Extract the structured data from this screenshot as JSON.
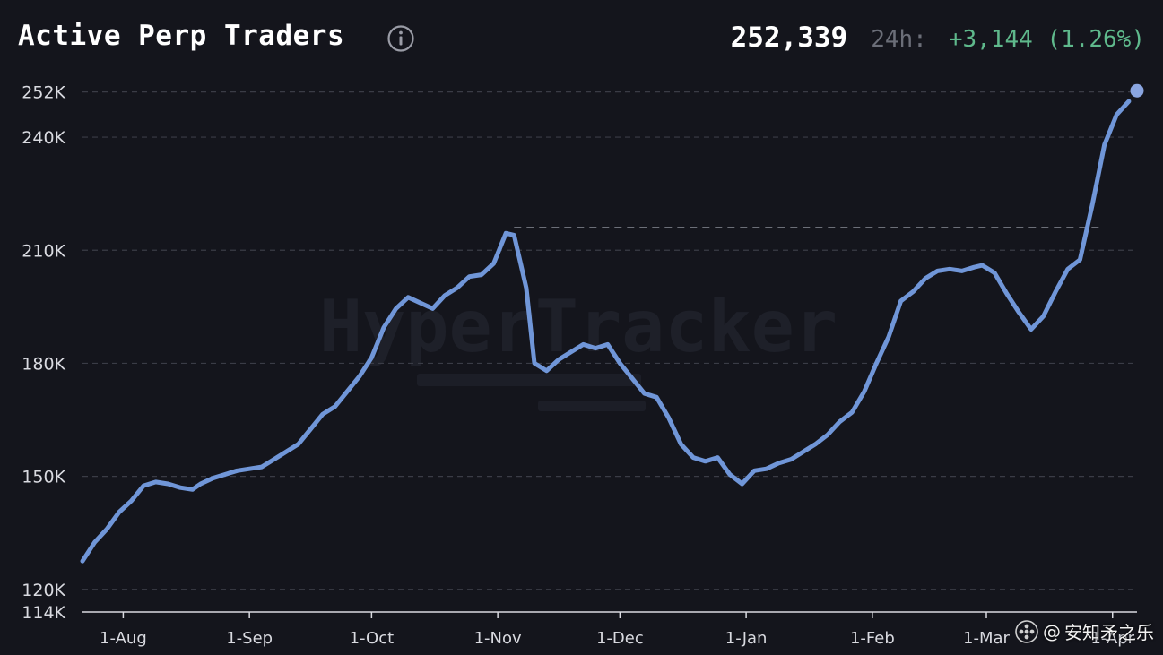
{
  "header": {
    "title": "Active Perp Traders",
    "current_value": "252,339",
    "period_label": "24h:",
    "change_text": "+3,144 (1.26%)"
  },
  "watermark": "HyperTracker",
  "credit": {
    "at": "@",
    "name": "安知矛之乐"
  },
  "colors": {
    "background": "#14151c",
    "line": "#7096d8",
    "grid": "#3a3c46",
    "positive": "#5fb98c"
  },
  "chart_data": {
    "type": "line",
    "title": "Active Perp Traders",
    "xlabel": "",
    "ylabel": "",
    "grid": true,
    "ylim": [
      114000,
      255000
    ],
    "xlim": [
      "2024-07-22",
      "2025-04-07"
    ],
    "y_ticks": [
      {
        "value": 114000,
        "label": "114K"
      },
      {
        "value": 120000,
        "label": "120K"
      },
      {
        "value": 150000,
        "label": "150K"
      },
      {
        "value": 180000,
        "label": "180K"
      },
      {
        "value": 210000,
        "label": "210K"
      },
      {
        "value": 240000,
        "label": "240K"
      },
      {
        "value": 252000,
        "label": "252K"
      }
    ],
    "x_ticks": [
      {
        "date": "2024-08-01",
        "label": "1-Aug"
      },
      {
        "date": "2024-09-01",
        "label": "1-Sep"
      },
      {
        "date": "2024-10-01",
        "label": "1-Oct"
      },
      {
        "date": "2024-11-01",
        "label": "1-Nov"
      },
      {
        "date": "2024-12-01",
        "label": "1-Dec"
      },
      {
        "date": "2025-01-01",
        "label": "1-Jan"
      },
      {
        "date": "2025-02-01",
        "label": "1-Feb"
      },
      {
        "date": "2025-03-01",
        "label": "1-Mar"
      },
      {
        "date": "2025-04-01",
        "label": "1-Apr"
      }
    ],
    "reference_lines": [
      {
        "value": 216000,
        "from": "2024-11-05",
        "to": "2025-03-29"
      }
    ],
    "series": [
      {
        "x": [
          "2024-07-22",
          "2024-07-25",
          "2024-07-28",
          "2024-07-31",
          "2024-08-03",
          "2024-08-06",
          "2024-08-09",
          "2024-08-12",
          "2024-08-15",
          "2024-08-18",
          "2024-08-20",
          "2024-08-23",
          "2024-08-26",
          "2024-08-29",
          "2024-09-01",
          "2024-09-04",
          "2024-09-07",
          "2024-09-10",
          "2024-09-13",
          "2024-09-16",
          "2024-09-19",
          "2024-09-22",
          "2024-09-25",
          "2024-09-28",
          "2024-10-01",
          "2024-10-04",
          "2024-10-07",
          "2024-10-10",
          "2024-10-13",
          "2024-10-16",
          "2024-10-19",
          "2024-10-22",
          "2024-10-25",
          "2024-10-28",
          "2024-10-31",
          "2024-11-03",
          "2024-11-05",
          "2024-11-08",
          "2024-11-10",
          "2024-11-13",
          "2024-11-16",
          "2024-11-19",
          "2024-11-22",
          "2024-11-25",
          "2024-11-28",
          "2024-12-01",
          "2024-12-04",
          "2024-12-07",
          "2024-12-10",
          "2024-12-13",
          "2024-12-16",
          "2024-12-19",
          "2024-12-22",
          "2024-12-25",
          "2024-12-28",
          "2024-12-31",
          "2025-01-03",
          "2025-01-06",
          "2025-01-09",
          "2025-01-12",
          "2025-01-15",
          "2025-01-18",
          "2025-01-21",
          "2025-01-24",
          "2025-01-27",
          "2025-01-30",
          "2025-02-02",
          "2025-02-05",
          "2025-02-08",
          "2025-02-11",
          "2025-02-14",
          "2025-02-17",
          "2025-02-20",
          "2025-02-23",
          "2025-02-26",
          "2025-02-28",
          "2025-03-03",
          "2025-03-06",
          "2025-03-09",
          "2025-03-12",
          "2025-03-15",
          "2025-03-18",
          "2025-03-21",
          "2025-03-24",
          "2025-03-27",
          "2025-03-30",
          "2025-04-02",
          "2025-04-05"
        ],
        "values": [
          127500,
          132500,
          136000,
          140500,
          143500,
          147500,
          148500,
          148000,
          147000,
          146500,
          148000,
          149500,
          150500,
          151500,
          152000,
          152500,
          154500,
          156500,
          158500,
          162500,
          166500,
          168500,
          172500,
          176500,
          181500,
          189500,
          194500,
          197500,
          196000,
          194500,
          198000,
          200000,
          203000,
          203500,
          206500,
          214500,
          214000,
          200000,
          180000,
          178000,
          181000,
          183000,
          185000,
          184000,
          185000,
          180000,
          176000,
          172000,
          171000,
          165500,
          158500,
          155000,
          154000,
          155000,
          150500,
          148000,
          151500,
          152000,
          153500,
          154500,
          156500,
          158500,
          161000,
          164500,
          167000,
          172500,
          180000,
          187000,
          196500,
          199000,
          202500,
          204500,
          205000,
          204500,
          205500,
          206000,
          204000,
          198500,
          193500,
          189000,
          192500,
          199000,
          205000,
          207500,
          222000,
          238000,
          246000,
          249500
        ]
      }
    ],
    "last_point": {
      "date": "2025-04-07",
      "value": 252339
    }
  }
}
